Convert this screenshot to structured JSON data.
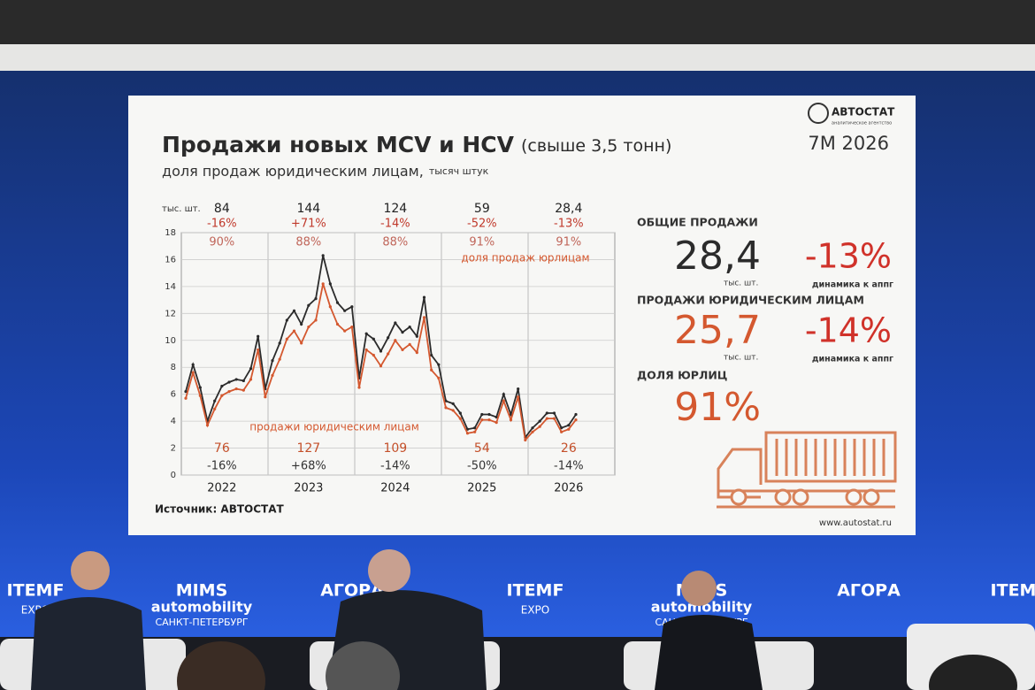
{
  "slide": {
    "logo": "АВТОСТАТ",
    "logo_sub": "аналитическое агентство",
    "title": "Продажи новых MCV и HCV",
    "title_note": "(свыше 3,5 тонн)",
    "subtitle": "доля продаж юридическим лицам,",
    "subtitle_unit": "тысяч штук",
    "period": "7М 2026",
    "source": "Источник: АВТОСТАТ",
    "website": "www.autostat.ru"
  },
  "chart_data": {
    "type": "line",
    "unit_label": "тыс. шт.",
    "categories": [
      null,
      null,
      null,
      null,
      null,
      "2022",
      null,
      null,
      null,
      null,
      null,
      null,
      null,
      null,
      null,
      null,
      null,
      "2023",
      null,
      null,
      null,
      null,
      null,
      null,
      null,
      null,
      null,
      null,
      null,
      "2024",
      null,
      null,
      null,
      null,
      null,
      null,
      null,
      null,
      null,
      null,
      null,
      "2025",
      null,
      null,
      null,
      null,
      null,
      null,
      null,
      null,
      null,
      null,
      null,
      "2026",
      null
    ],
    "series": [
      {
        "color": "#2b2b2b",
        "values": [
          6.2,
          8.2,
          6.5,
          4.0,
          5.5,
          6.6,
          6.9,
          7.1,
          7.0,
          7.9,
          10.3,
          6.4,
          8.5,
          9.8,
          11.5,
          12.2,
          11.2,
          12.6,
          13.1,
          16.3,
          14.2,
          12.8,
          12.2,
          12.5,
          7.2,
          10.5,
          10.1,
          9.2,
          10.2,
          11.3,
          10.6,
          11.0,
          10.3,
          13.2,
          8.9,
          8.2,
          5.5,
          5.3,
          4.6,
          3.4,
          3.5,
          4.5,
          4.5,
          4.3,
          6.0,
          4.5,
          6.4,
          2.8,
          3.5,
          4.0,
          4.6,
          4.6,
          3.5,
          3.7,
          4.5
        ]
      },
      {
        "name": "продажи юридическим лицам",
        "color": "#d4582f",
        "values": [
          5.7,
          7.6,
          5.9,
          3.7,
          4.9,
          5.9,
          6.2,
          6.4,
          6.3,
          7.1,
          9.3,
          5.8,
          7.4,
          8.6,
          10.1,
          10.7,
          9.8,
          11.0,
          11.5,
          14.2,
          12.5,
          11.2,
          10.7,
          11.0,
          6.5,
          9.3,
          8.9,
          8.1,
          9.0,
          10.0,
          9.3,
          9.7,
          9.1,
          11.7,
          7.8,
          7.2,
          5.0,
          4.8,
          4.2,
          3.1,
          3.2,
          4.1,
          4.1,
          3.9,
          5.5,
          4.1,
          5.8,
          2.6,
          3.2,
          3.6,
          4.2,
          4.2,
          3.2,
          3.4,
          4.1
        ]
      }
    ],
    "ylim": [
      0,
      18
    ],
    "yticks": [
      0,
      2,
      4,
      6,
      8,
      10,
      12,
      14,
      16,
      18
    ],
    "grid": true,
    "share_label": "доля продаж юрлицам",
    "annotations": [
      {
        "total": "84",
        "total_change": "-16%",
        "share": "90%",
        "legal": "76",
        "legal_change": "-16%"
      },
      {
        "total": "144",
        "total_change": "+71%",
        "share": "88%",
        "legal": "127",
        "legal_change": "+68%"
      },
      {
        "total": "124",
        "total_change": "-14%",
        "share": "88%",
        "legal": "109",
        "legal_change": "-14%"
      },
      {
        "total": "59",
        "total_change": "-52%",
        "share": "91%",
        "legal": "54",
        "legal_change": "-50%"
      },
      {
        "total": "28,4",
        "total_change": "-13%",
        "share": "91%",
        "legal": "26",
        "legal_change": "-14%"
      }
    ]
  },
  "summary": [
    {
      "label": "ОБЩИЕ ПРОДАЖИ",
      "value": "28,4",
      "unit": "тыс. шт.",
      "change": "-13%",
      "change_label": "динамика к аппг"
    },
    {
      "label": "ПРОДАЖИ ЮРИДИЧЕСКИМ ЛИЦАМ",
      "value": "25,7",
      "unit": "тыс. шт.",
      "change": "-14%",
      "change_label": "динамика к аппг"
    },
    {
      "label": "ДОЛЯ ЮРЛИЦ",
      "value": "91%"
    }
  ],
  "stage": {
    "logos": [
      {
        "top": "ITEMF",
        "bottom": "EXPO"
      },
      {
        "top": "MIMS",
        "mid": "automobility",
        "bottom": "САНКТ-ПЕТЕРБУРГ"
      },
      {
        "top": "АГОРА"
      },
      {
        "top": "ITEMF",
        "bottom": "EXPO"
      },
      {
        "top": "MIMS",
        "mid": "automobility",
        "bottom": "САНКТ-ПЕТЕРБУРГ"
      },
      {
        "top": "АГОРА"
      },
      {
        "top": "ITEMF"
      }
    ]
  }
}
